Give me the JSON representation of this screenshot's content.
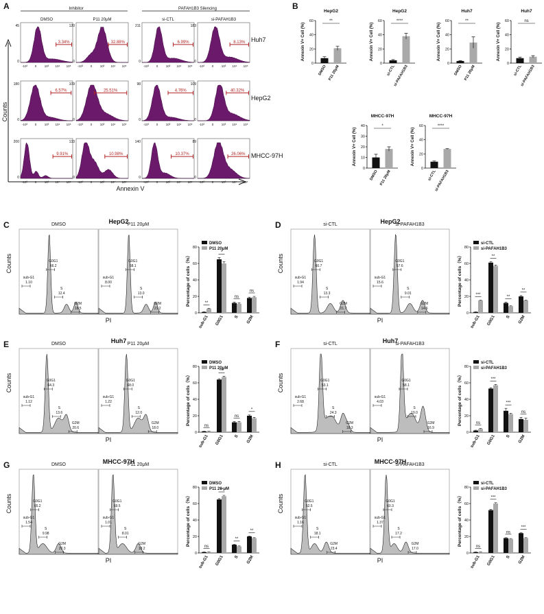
{
  "colors": {
    "purple": "#6b1a6b",
    "gate": "#b22222",
    "black": "#111111",
    "gray": "#a9a9a9",
    "histfill": "#bdbdbd"
  },
  "panelA": {
    "letter": "A",
    "group_inhibitor": "Inhibitor",
    "group_silencing": "PAFAH1B3 Silencing",
    "columns": [
      "DMSO",
      "P11 20μM",
      "si-CTL",
      "si-PAFAH1B3"
    ],
    "rows": [
      "Huh7",
      "HepG2",
      "MHCC-97H"
    ],
    "ylabel": "Counts",
    "xlabel": "Annexin V",
    "tick_labels": [
      "-10³",
      "0",
      "10³",
      "10⁴",
      "10⁵"
    ],
    "ymax": [
      [
        "45",
        "120",
        "211",
        "183"
      ],
      [
        "180",
        "109",
        "98",
        "109"
      ],
      [
        "200",
        "133",
        "140",
        "89"
      ]
    ],
    "percents": [
      [
        "3.34%",
        "32.88%",
        "6.99%",
        "8.13%"
      ],
      [
        "6.57%",
        "25.51%",
        "4.76%",
        "40.32%"
      ],
      [
        "9.91%",
        "10.98%",
        "10.37%",
        "26.06%"
      ]
    ]
  },
  "panelB": {
    "letter": "B",
    "charts": [
      {
        "title": "HepG2",
        "ylabel": "Annexin V+ Cell (%)",
        "categories": [
          "DMSO",
          "P11 20μM"
        ],
        "values": [
          7,
          21
        ],
        "errors": [
          2,
          3
        ],
        "ylim": [
          0,
          60
        ],
        "yticks": [
          "0",
          "20",
          "40",
          "60"
        ],
        "sig": "**"
      },
      {
        "title": "HepG2",
        "ylabel": "Annexin V+ Cell (%)",
        "categories": [
          "si-CTL",
          "si-PAFAH1B3"
        ],
        "values": [
          4,
          38
        ],
        "errors": [
          1,
          4
        ],
        "ylim": [
          0,
          60
        ],
        "yticks": [
          "0",
          "20",
          "40",
          "60"
        ],
        "sig": "****"
      },
      {
        "title": "Huh7",
        "ylabel": "Annexin V+ Cell (%)",
        "categories": [
          "DMSO",
          "P11 20μM"
        ],
        "values": [
          3,
          29
        ],
        "errors": [
          0.5,
          8
        ],
        "ylim": [
          0,
          60
        ],
        "yticks": [
          "0",
          "20",
          "40",
          "60"
        ],
        "sig": "**"
      },
      {
        "title": "Huh7",
        "ylabel": "Annexin V+ Cell (%)",
        "categories": [
          "si-CTL",
          "si-PAFAH1B3"
        ],
        "values": [
          7,
          9
        ],
        "errors": [
          1.5,
          1.5
        ],
        "ylim": [
          0,
          60
        ],
        "yticks": [
          "0",
          "20",
          "40",
          "60"
        ],
        "sig": "ns"
      },
      {
        "title": "MHCC-97H",
        "ylabel": "Annexin V+ Cell (%)",
        "categories": [
          "DMSO",
          "P11 20μM"
        ],
        "values": [
          10,
          18
        ],
        "errors": [
          3,
          2
        ],
        "ylim": [
          0,
          40
        ],
        "yticks": [
          "0",
          "10",
          "20",
          "30",
          "40"
        ],
        "sig": "*"
      },
      {
        "title": "MHCC-97H",
        "ylabel": "Annexin V+ Cell (%)",
        "categories": [
          "si-CTL",
          "si-PAFAH1B3"
        ],
        "values": [
          9,
          27
        ],
        "errors": [
          1,
          0.5
        ],
        "ylim": [
          0,
          60
        ],
        "yticks": [
          "0",
          "20",
          "40",
          "60"
        ],
        "sig": "****"
      }
    ]
  },
  "cycle": {
    "xlabel": "PI",
    "ylabel": "Counts",
    "bar_ylabel": "Percentage of cells（%）",
    "phases": [
      "sub-G1",
      "G0G1",
      "S",
      "G2M"
    ],
    "yticks": [
      "0",
      "20",
      "40",
      "60",
      "80"
    ],
    "panels": [
      {
        "letter": "C",
        "title": "HepG2",
        "conds": [
          "DMSO",
          "P11 20μM"
        ],
        "legend": [
          "DMSO",
          "P11 20μM"
        ],
        "hist": [
          {
            "sub": "1.10",
            "g0": "66.2",
            "s": "12.4",
            "g2": "18.5"
          },
          {
            "sub": "8.00",
            "g0": "58.1",
            "s": "13.0",
            "g2": "21.2"
          }
        ],
        "values": [
          [
            1,
            65,
            12,
            18
          ],
          [
            5,
            60,
            11,
            19
          ]
        ],
        "errors": [
          [
            0.3,
            2,
            1,
            1
          ],
          [
            0.5,
            2,
            1,
            1
          ]
        ],
        "sig": [
          "**",
          "*",
          "ns",
          "ns"
        ]
      },
      {
        "letter": "D",
        "title": "HepG2",
        "conds": [
          "si-CTL",
          "si-PAFAH1B3"
        ],
        "legend": [
          "si-CTL",
          "si-PAFAH1B3"
        ],
        "hist": [
          {
            "sub": "1.94",
            "g0": "60.7",
            "s": "13.3",
            "g2": "21.7"
          },
          {
            "sub": "15.6",
            "g0": "57.6",
            "s": "9.01",
            "g2": "14.6"
          }
        ],
        "values": [
          [
            1,
            61,
            12,
            20
          ],
          [
            15,
            57,
            8,
            15
          ]
        ],
        "errors": [
          [
            0.2,
            1,
            1,
            1
          ],
          [
            0.5,
            1,
            0.5,
            0.5
          ]
        ],
        "sig": [
          "***",
          "**",
          "**",
          "**"
        ]
      },
      {
        "letter": "E",
        "title": "Huh7",
        "conds": [
          "DMSO",
          "P11 20μM"
        ],
        "legend": [
          "DMSO",
          "P11 20μM"
        ],
        "hist": [
          {
            "sub": "1.12",
            "g0": "64.3",
            "s": "13.6",
            "g2": "20.6"
          },
          {
            "sub": "1.22",
            "g0": "68.0",
            "s": "12.0",
            "g2": "18.0"
          }
        ],
        "values": [
          [
            1,
            64,
            12,
            20
          ],
          [
            1,
            67,
            12,
            17
          ]
        ],
        "errors": [
          [
            0.2,
            1,
            1,
            1
          ],
          [
            0.2,
            1,
            1,
            1
          ]
        ],
        "sig": [
          "ns",
          "***",
          "ns",
          "*"
        ]
      },
      {
        "letter": "F",
        "title": "Huh7",
        "conds": [
          "si-CTL",
          "si-PAFAH1B3"
        ],
        "legend": [
          "si-CTL",
          "si-PAFAH1B3"
        ],
        "hist": [
          {
            "sub": "2.68",
            "g0": "53.1",
            "s": "24.3",
            "g2": "18.3"
          },
          {
            "sub": "4.03",
            "g0": "58.1",
            "s": "19.0",
            "g2": "16.9"
          }
        ],
        "values": [
          [
            2,
            53,
            26,
            16
          ],
          [
            4,
            57,
            22,
            15
          ]
        ],
        "errors": [
          [
            0.5,
            1,
            3,
            2
          ],
          [
            0.5,
            1,
            1,
            2
          ]
        ],
        "sig": [
          "ns",
          "***",
          "***",
          "ns"
        ]
      },
      {
        "letter": "G",
        "title": "MHCC-97H",
        "conds": [
          "DMSO",
          "P11 20μM"
        ],
        "legend": [
          "DMSO",
          "P11 20 μM"
        ],
        "hist": [
          {
            "sub": "1.54",
            "g0": "65.2",
            "s": "9.98",
            "g2": "20.3"
          },
          {
            "sub": "1.01",
            "g0": "69.5",
            "s": "8.01",
            "g2": "18.2"
          }
        ],
        "values": [
          [
            1,
            65,
            10,
            20
          ],
          [
            1,
            69,
            8,
            18
          ]
        ],
        "errors": [
          [
            0.2,
            1,
            0.5,
            0.5
          ],
          [
            0.2,
            1,
            0.5,
            0.5
          ]
        ],
        "sig": [
          "ns",
          "**",
          "**",
          "**"
        ]
      },
      {
        "letter": "H",
        "title": "MHCC-97H",
        "conds": [
          "si-CTL",
          "si-PAFAH1B3"
        ],
        "legend": [
          "si-CTL",
          "si-PAFAH1B3"
        ],
        "hist": [
          {
            "sub": "1.16",
            "g0": "52.5",
            "s": "18.1",
            "g2": "23.4"
          },
          {
            "sub": "1.37",
            "g0": "60.3",
            "s": "17.2",
            "g2": "17.0"
          }
        ],
        "values": [
          [
            1,
            52,
            18,
            24
          ],
          [
            1,
            60,
            17,
            18
          ]
        ],
        "errors": [
          [
            0.2,
            1,
            0.5,
            0.5
          ],
          [
            0.2,
            1,
            0.5,
            0.5
          ]
        ],
        "sig": [
          "ns",
          "***",
          "ns",
          "***"
        ]
      }
    ]
  },
  "chart_data": [
    {
      "type": "bar",
      "title": "HepG2",
      "categories": [
        "DMSO",
        "P11 20μM"
      ],
      "values": [
        7,
        21
      ],
      "ylabel": "Annexin V+ Cell (%)",
      "ylim": [
        0,
        60
      ]
    },
    {
      "type": "bar",
      "title": "HepG2",
      "categories": [
        "si-CTL",
        "si-PAFAH1B3"
      ],
      "values": [
        4,
        38
      ],
      "ylabel": "Annexin V+ Cell (%)",
      "ylim": [
        0,
        60
      ]
    },
    {
      "type": "bar",
      "title": "Huh7",
      "categories": [
        "DMSO",
        "P11 20μM"
      ],
      "values": [
        3,
        29
      ],
      "ylabel": "Annexin V+ Cell (%)",
      "ylim": [
        0,
        60
      ]
    },
    {
      "type": "bar",
      "title": "Huh7",
      "categories": [
        "si-CTL",
        "si-PAFAH1B3"
      ],
      "values": [
        7,
        9
      ],
      "ylabel": "Annexin V+ Cell (%)",
      "ylim": [
        0,
        60
      ]
    },
    {
      "type": "bar",
      "title": "MHCC-97H",
      "categories": [
        "DMSO",
        "P11 20μM"
      ],
      "values": [
        10,
        18
      ],
      "ylabel": "Annexin V+ Cell (%)",
      "ylim": [
        0,
        40
      ]
    },
    {
      "type": "bar",
      "title": "MHCC-97H",
      "categories": [
        "si-CTL",
        "si-PAFAH1B3"
      ],
      "values": [
        9,
        27
      ],
      "ylabel": "Annexin V+ Cell (%)",
      "ylim": [
        0,
        60
      ]
    },
    {
      "type": "bar",
      "title": "HepG2",
      "categories": [
        "sub-G1",
        "G0G1",
        "S",
        "G2M"
      ],
      "series": [
        {
          "name": "DMSO",
          "values": [
            1,
            65,
            12,
            18
          ]
        },
        {
          "name": "P11 20μM",
          "values": [
            5,
            60,
            11,
            19
          ]
        }
      ],
      "ylim": [
        0,
        80
      ]
    },
    {
      "type": "bar",
      "title": "HepG2",
      "categories": [
        "sub-G1",
        "G0G1",
        "S",
        "G2M"
      ],
      "series": [
        {
          "name": "si-CTL",
          "values": [
            1,
            61,
            12,
            20
          ]
        },
        {
          "name": "si-PAFAH1B3",
          "values": [
            15,
            57,
            8,
            15
          ]
        }
      ],
      "ylim": [
        0,
        80
      ]
    },
    {
      "type": "bar",
      "title": "Huh7",
      "categories": [
        "sub-G1",
        "G0G1",
        "S",
        "G2M"
      ],
      "series": [
        {
          "name": "DMSO",
          "values": [
            1,
            64,
            12,
            20
          ]
        },
        {
          "name": "P11 20μM",
          "values": [
            1,
            67,
            12,
            17
          ]
        }
      ],
      "ylim": [
        0,
        80
      ]
    },
    {
      "type": "bar",
      "title": "Huh7",
      "categories": [
        "sub-G1",
        "G0G1",
        "S",
        "G2M"
      ],
      "series": [
        {
          "name": "si-CTL",
          "values": [
            2,
            53,
            26,
            16
          ]
        },
        {
          "name": "si-PAFAH1B3",
          "values": [
            4,
            57,
            22,
            15
          ]
        }
      ],
      "ylim": [
        0,
        80
      ]
    },
    {
      "type": "bar",
      "title": "MHCC-97H",
      "categories": [
        "sub-G1",
        "G0G1",
        "S",
        "G2M"
      ],
      "series": [
        {
          "name": "DMSO",
          "values": [
            1,
            65,
            10,
            20
          ]
        },
        {
          "name": "P11 20 μM",
          "values": [
            1,
            69,
            8,
            18
          ]
        }
      ],
      "ylim": [
        0,
        80
      ]
    },
    {
      "type": "bar",
      "title": "MHCC-97H",
      "categories": [
        "sub-G1",
        "G0G1",
        "S",
        "G2M"
      ],
      "series": [
        {
          "name": "si-CTL",
          "values": [
            1,
            52,
            18,
            24
          ]
        },
        {
          "name": "si-PAFAH1B3",
          "values": [
            1,
            60,
            17,
            18
          ]
        }
      ],
      "ylim": [
        0,
        80
      ]
    }
  ]
}
